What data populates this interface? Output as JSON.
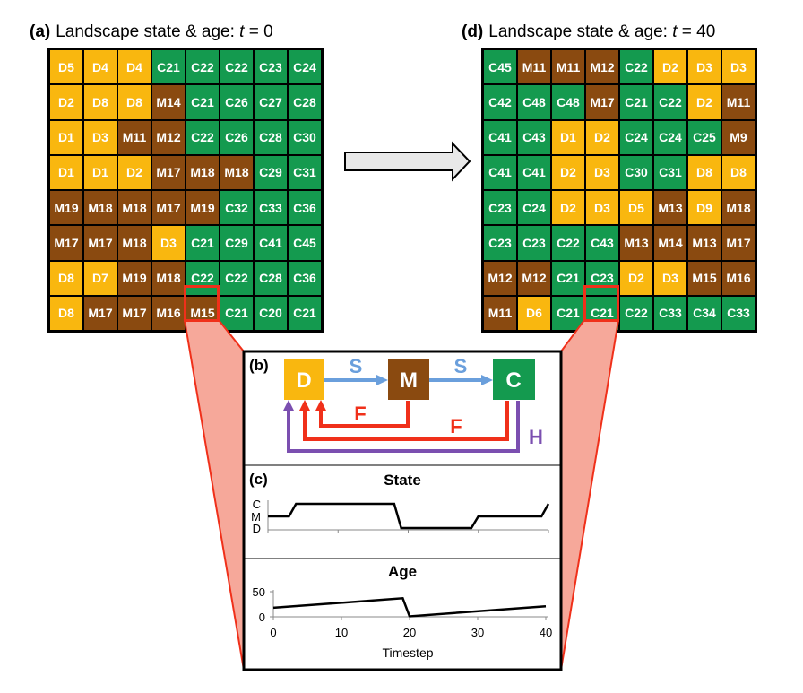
{
  "panel_a": {
    "label": "(a)",
    "title_prefix": "Landscape state & age: ",
    "title_var": "t",
    "title_suffix": " = 0",
    "grid": [
      [
        "D5",
        "D4",
        "D4",
        "C21",
        "C22",
        "C22",
        "C23",
        "C24"
      ],
      [
        "D2",
        "D8",
        "D8",
        "M14",
        "C21",
        "C26",
        "C27",
        "C28"
      ],
      [
        "D1",
        "D3",
        "M11",
        "M12",
        "C22",
        "C26",
        "C28",
        "C30"
      ],
      [
        "D1",
        "D1",
        "D2",
        "M17",
        "M18",
        "M18",
        "C29",
        "C31"
      ],
      [
        "M19",
        "M18",
        "M18",
        "M17",
        "M19",
        "C32",
        "C33",
        "C36"
      ],
      [
        "M17",
        "M17",
        "M18",
        "D3",
        "C21",
        "C29",
        "C41",
        "C45"
      ],
      [
        "D8",
        "D7",
        "M19",
        "M18",
        "C22",
        "C22",
        "C28",
        "C36"
      ],
      [
        "D8",
        "M17",
        "M17",
        "M16",
        "M15",
        "C21",
        "C20",
        "C21"
      ]
    ]
  },
  "panel_d": {
    "label": "(d)",
    "title_prefix": "Landscape state & age: ",
    "title_var": "t",
    "title_suffix": " = 40",
    "grid": [
      [
        "C45",
        "M11",
        "M11",
        "M12",
        "C22",
        "D2",
        "D3",
        "D3"
      ],
      [
        "C42",
        "C48",
        "C48",
        "M17",
        "C21",
        "C22",
        "D2",
        "M11"
      ],
      [
        "C41",
        "C43",
        "D1",
        "D2",
        "C24",
        "C24",
        "C25",
        "M9"
      ],
      [
        "C41",
        "C41",
        "D2",
        "D3",
        "C30",
        "C31",
        "D8",
        "D8"
      ],
      [
        "C23",
        "C24",
        "D2",
        "D3",
        "D5",
        "M13",
        "D9",
        "M18"
      ],
      [
        "C23",
        "C23",
        "C22",
        "C43",
        "M13",
        "M14",
        "M13",
        "M17"
      ],
      [
        "M12",
        "M12",
        "C21",
        "C23",
        "D2",
        "D3",
        "M15",
        "M16"
      ],
      [
        "M11",
        "D6",
        "C21",
        "C21",
        "C22",
        "C33",
        "C34",
        "C33"
      ]
    ]
  },
  "panel_b": {
    "label": "(b)",
    "state_d": "D",
    "state_m": "M",
    "state_c": "C",
    "succession_1": "S",
    "succession_2": "S",
    "fire_1": "F",
    "fire_2": "F",
    "harvest": "H"
  },
  "panel_c": {
    "label": "(c)",
    "state_chart_title": "State",
    "age_chart_title": "Age",
    "x_axis_label": "Timestep"
  },
  "colors": {
    "disturbed": "#f9b70f",
    "mature": "#8a4a10",
    "climax": "#149a4f",
    "succession": "#6a9fdc",
    "fire": "#f0301a",
    "harvest": "#7b4fb0",
    "zoom_fill": "#f6a89a",
    "zoom_edge": "#f0301a"
  },
  "chart_data": [
    {
      "type": "line",
      "title": "State",
      "xlabel": "",
      "ylabel": "",
      "xlim": [
        0,
        40
      ],
      "y_categories": [
        "D",
        "M",
        "C"
      ],
      "x_ticks": [
        0,
        10,
        20,
        30,
        40
      ],
      "x": [
        0,
        3,
        4,
        18,
        19,
        29,
        30,
        39,
        40
      ],
      "y": [
        "M",
        "M",
        "C",
        "C",
        "D",
        "D",
        "M",
        "M",
        "C"
      ],
      "grid": false
    },
    {
      "type": "line",
      "title": "Age",
      "xlabel": "Timestep",
      "ylabel": "",
      "xlim": [
        0,
        40
      ],
      "ylim": [
        0,
        50
      ],
      "x_ticks": [
        0,
        10,
        20,
        30,
        40
      ],
      "y_ticks": [
        0,
        50
      ],
      "x": [
        0,
        19,
        20,
        40
      ],
      "y": [
        18,
        37,
        1,
        21
      ],
      "grid": false
    }
  ]
}
